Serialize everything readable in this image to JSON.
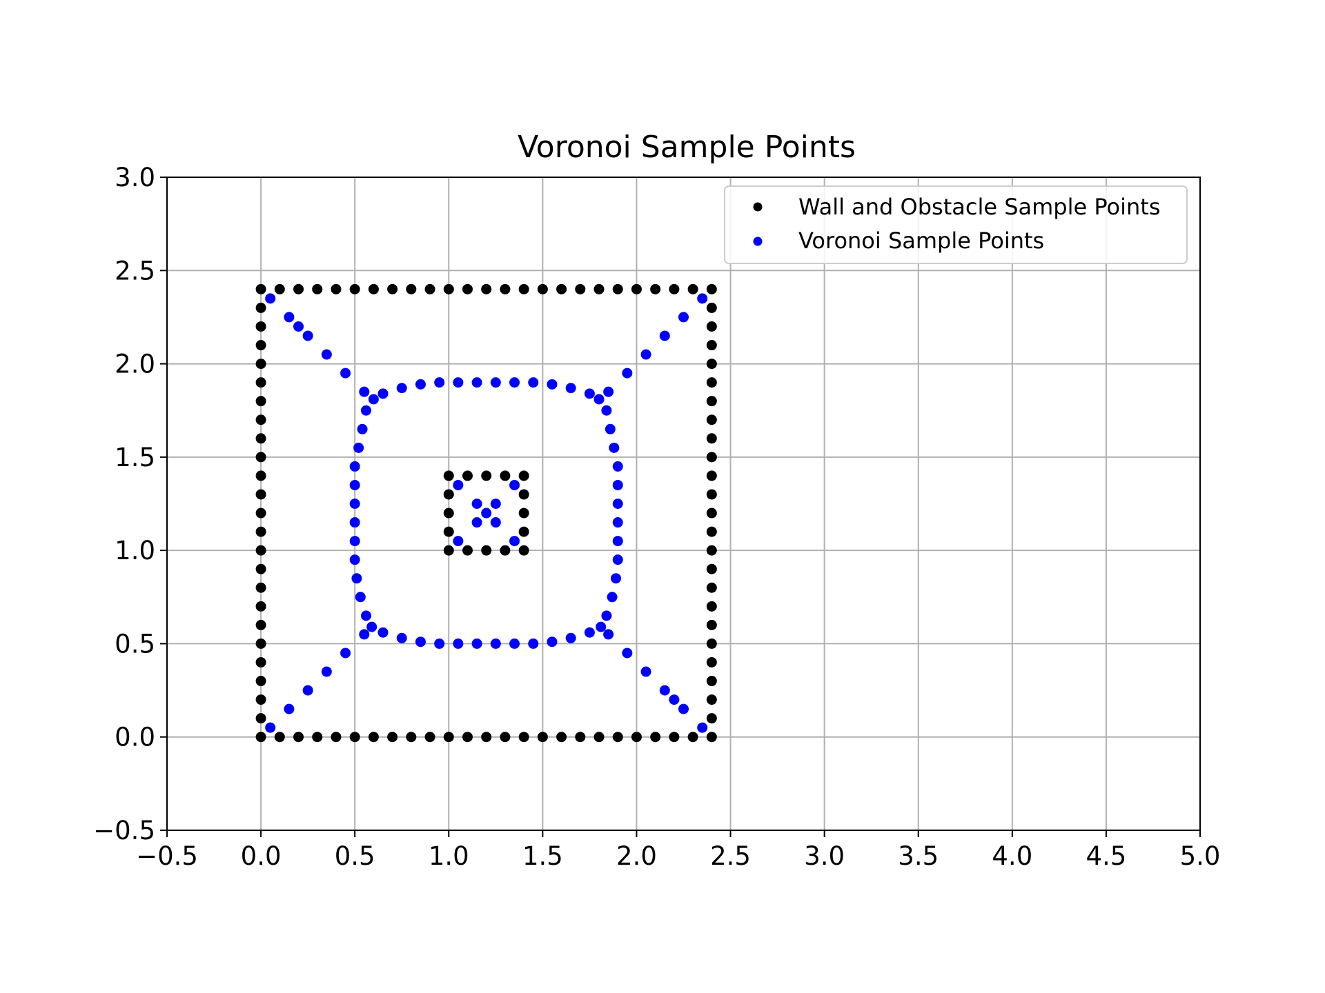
{
  "chart_data": {
    "type": "scatter",
    "title": "Voronoi Sample Points",
    "xlabel": "",
    "ylabel": "",
    "xlim": [
      -0.5,
      5.0
    ],
    "ylim": [
      -0.5,
      3.0
    ],
    "grid": true,
    "legend_position": "top-right",
    "x_ticks": [
      "−0.5",
      "0.0",
      "0.5",
      "1.0",
      "1.5",
      "2.0",
      "2.5",
      "3.0",
      "3.5",
      "4.0",
      "4.5",
      "5.0"
    ],
    "x_tick_values": [
      -0.5,
      0.0,
      0.5,
      1.0,
      1.5,
      2.0,
      2.5,
      3.0,
      3.5,
      4.0,
      4.5,
      5.0
    ],
    "y_ticks": [
      "−0.5",
      "0.0",
      "0.5",
      "1.0",
      "1.5",
      "2.0",
      "2.5",
      "3.0"
    ],
    "y_tick_values": [
      -0.5,
      0.0,
      0.5,
      1.0,
      1.5,
      2.0,
      2.5,
      3.0
    ],
    "series": [
      {
        "name": "Wall and Obstacle Sample Points",
        "color": "#000000",
        "points": [
          [
            0.0,
            0.0
          ],
          [
            0.1,
            0.0
          ],
          [
            0.2,
            0.0
          ],
          [
            0.3,
            0.0
          ],
          [
            0.4,
            0.0
          ],
          [
            0.5,
            0.0
          ],
          [
            0.6,
            0.0
          ],
          [
            0.7,
            0.0
          ],
          [
            0.8,
            0.0
          ],
          [
            0.9,
            0.0
          ],
          [
            1.0,
            0.0
          ],
          [
            1.1,
            0.0
          ],
          [
            1.2,
            0.0
          ],
          [
            1.3,
            0.0
          ],
          [
            1.4,
            0.0
          ],
          [
            1.5,
            0.0
          ],
          [
            1.6,
            0.0
          ],
          [
            1.7,
            0.0
          ],
          [
            1.8,
            0.0
          ],
          [
            1.9,
            0.0
          ],
          [
            2.0,
            0.0
          ],
          [
            2.1,
            0.0
          ],
          [
            2.2,
            0.0
          ],
          [
            2.3,
            0.0
          ],
          [
            2.4,
            0.0
          ],
          [
            0.0,
            2.4
          ],
          [
            0.1,
            2.4
          ],
          [
            0.2,
            2.4
          ],
          [
            0.3,
            2.4
          ],
          [
            0.4,
            2.4
          ],
          [
            0.5,
            2.4
          ],
          [
            0.6,
            2.4
          ],
          [
            0.7,
            2.4
          ],
          [
            0.8,
            2.4
          ],
          [
            0.9,
            2.4
          ],
          [
            1.0,
            2.4
          ],
          [
            1.1,
            2.4
          ],
          [
            1.2,
            2.4
          ],
          [
            1.3,
            2.4
          ],
          [
            1.4,
            2.4
          ],
          [
            1.5,
            2.4
          ],
          [
            1.6,
            2.4
          ],
          [
            1.7,
            2.4
          ],
          [
            1.8,
            2.4
          ],
          [
            1.9,
            2.4
          ],
          [
            2.0,
            2.4
          ],
          [
            2.1,
            2.4
          ],
          [
            2.2,
            2.4
          ],
          [
            2.3,
            2.4
          ],
          [
            2.4,
            2.4
          ],
          [
            0.0,
            0.1
          ],
          [
            0.0,
            0.2
          ],
          [
            0.0,
            0.3
          ],
          [
            0.0,
            0.4
          ],
          [
            0.0,
            0.5
          ],
          [
            0.0,
            0.6
          ],
          [
            0.0,
            0.7
          ],
          [
            0.0,
            0.8
          ],
          [
            0.0,
            0.9
          ],
          [
            0.0,
            1.0
          ],
          [
            0.0,
            1.1
          ],
          [
            0.0,
            1.2
          ],
          [
            0.0,
            1.3
          ],
          [
            0.0,
            1.4
          ],
          [
            0.0,
            1.5
          ],
          [
            0.0,
            1.6
          ],
          [
            0.0,
            1.7
          ],
          [
            0.0,
            1.8
          ],
          [
            0.0,
            1.9
          ],
          [
            0.0,
            2.0
          ],
          [
            0.0,
            2.1
          ],
          [
            0.0,
            2.2
          ],
          [
            0.0,
            2.3
          ],
          [
            2.4,
            0.1
          ],
          [
            2.4,
            0.2
          ],
          [
            2.4,
            0.3
          ],
          [
            2.4,
            0.4
          ],
          [
            2.4,
            0.5
          ],
          [
            2.4,
            0.6
          ],
          [
            2.4,
            0.7
          ],
          [
            2.4,
            0.8
          ],
          [
            2.4,
            0.9
          ],
          [
            2.4,
            1.0
          ],
          [
            2.4,
            1.1
          ],
          [
            2.4,
            1.2
          ],
          [
            2.4,
            1.3
          ],
          [
            2.4,
            1.4
          ],
          [
            2.4,
            1.5
          ],
          [
            2.4,
            1.6
          ],
          [
            2.4,
            1.7
          ],
          [
            2.4,
            1.8
          ],
          [
            2.4,
            1.9
          ],
          [
            2.4,
            2.0
          ],
          [
            2.4,
            2.1
          ],
          [
            2.4,
            2.2
          ],
          [
            2.4,
            2.3
          ],
          [
            1.0,
            1.0
          ],
          [
            1.1,
            1.0
          ],
          [
            1.2,
            1.0
          ],
          [
            1.3,
            1.0
          ],
          [
            1.4,
            1.0
          ],
          [
            1.0,
            1.4
          ],
          [
            1.1,
            1.4
          ],
          [
            1.2,
            1.4
          ],
          [
            1.3,
            1.4
          ],
          [
            1.4,
            1.4
          ],
          [
            1.0,
            1.1
          ],
          [
            1.0,
            1.2
          ],
          [
            1.0,
            1.3
          ],
          [
            1.4,
            1.1
          ],
          [
            1.4,
            1.2
          ],
          [
            1.4,
            1.3
          ]
        ]
      },
      {
        "name": "Voronoi Sample Points",
        "color": "#0000ff",
        "points": [
          [
            0.05,
            0.05
          ],
          [
            0.15,
            0.15
          ],
          [
            0.25,
            0.25
          ],
          [
            0.35,
            0.35
          ],
          [
            0.45,
            0.45
          ],
          [
            0.05,
            2.35
          ],
          [
            0.15,
            2.25
          ],
          [
            0.2,
            2.2
          ],
          [
            0.25,
            2.15
          ],
          [
            0.35,
            2.05
          ],
          [
            0.45,
            1.95
          ],
          [
            2.35,
            2.35
          ],
          [
            2.25,
            2.25
          ],
          [
            2.15,
            2.15
          ],
          [
            2.05,
            2.05
          ],
          [
            1.95,
            1.95
          ],
          [
            2.35,
            0.05
          ],
          [
            2.25,
            0.15
          ],
          [
            2.2,
            0.2
          ],
          [
            2.15,
            0.25
          ],
          [
            2.05,
            0.35
          ],
          [
            1.95,
            0.45
          ],
          [
            0.55,
            1.85
          ],
          [
            0.6,
            1.81
          ],
          [
            0.65,
            1.84
          ],
          [
            0.75,
            1.87
          ],
          [
            0.85,
            1.89
          ],
          [
            0.95,
            1.9
          ],
          [
            1.05,
            1.9
          ],
          [
            1.15,
            1.9
          ],
          [
            1.25,
            1.9
          ],
          [
            1.35,
            1.9
          ],
          [
            1.45,
            1.9
          ],
          [
            1.55,
            1.89
          ],
          [
            1.65,
            1.87
          ],
          [
            1.75,
            1.84
          ],
          [
            1.8,
            1.81
          ],
          [
            1.85,
            1.85
          ],
          [
            0.56,
            1.75
          ],
          [
            0.54,
            1.65
          ],
          [
            0.52,
            1.55
          ],
          [
            0.5,
            1.45
          ],
          [
            0.5,
            1.35
          ],
          [
            0.5,
            1.25
          ],
          [
            0.5,
            1.15
          ],
          [
            0.5,
            1.05
          ],
          [
            0.5,
            0.95
          ],
          [
            0.51,
            0.85
          ],
          [
            0.53,
            0.75
          ],
          [
            0.56,
            0.65
          ],
          [
            1.84,
            1.75
          ],
          [
            1.86,
            1.65
          ],
          [
            1.88,
            1.55
          ],
          [
            1.9,
            1.45
          ],
          [
            1.9,
            1.35
          ],
          [
            1.9,
            1.25
          ],
          [
            1.9,
            1.15
          ],
          [
            1.9,
            1.05
          ],
          [
            1.9,
            0.95
          ],
          [
            1.89,
            0.85
          ],
          [
            1.87,
            0.75
          ],
          [
            1.84,
            0.65
          ],
          [
            0.55,
            0.55
          ],
          [
            0.59,
            0.59
          ],
          [
            0.65,
            0.56
          ],
          [
            0.75,
            0.53
          ],
          [
            0.85,
            0.51
          ],
          [
            0.95,
            0.5
          ],
          [
            1.05,
            0.5
          ],
          [
            1.15,
            0.5
          ],
          [
            1.25,
            0.5
          ],
          [
            1.35,
            0.5
          ],
          [
            1.45,
            0.5
          ],
          [
            1.55,
            0.51
          ],
          [
            1.65,
            0.53
          ],
          [
            1.75,
            0.56
          ],
          [
            1.81,
            0.59
          ],
          [
            1.85,
            0.55
          ],
          [
            1.05,
            1.35
          ],
          [
            1.35,
            1.35
          ],
          [
            1.05,
            1.05
          ],
          [
            1.35,
            1.05
          ],
          [
            1.15,
            1.25
          ],
          [
            1.25,
            1.25
          ],
          [
            1.2,
            1.2
          ],
          [
            1.15,
            1.15
          ],
          [
            1.25,
            1.15
          ]
        ]
      }
    ]
  }
}
